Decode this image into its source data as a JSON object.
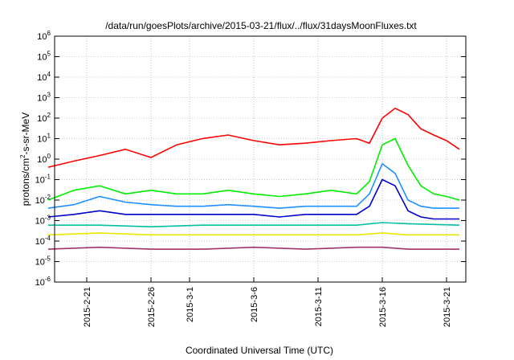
{
  "chart_data": {
    "type": "line",
    "title": "/data/run/goesPlots/archive/2015-03-21/flux/../flux/31daysMoonFluxes.txt",
    "xlabel": "Coordinated Universal Time (UTC)",
    "ylabel": {
      "prefix": "protons/cm",
      "sup": "2",
      "suffix": "-s-sr-MeV"
    },
    "y_scale": "log",
    "ylim": [
      1e-06,
      1000000.0
    ],
    "xlim": [
      "2015-02-18T12:00",
      "2015-03-22T12:00"
    ],
    "grid": true,
    "legend": "none",
    "x_ticks": [
      "2015-2-21",
      "2015-2-26",
      "2015-3-1",
      "2015-3-6",
      "2015-3-11",
      "2015-3-16",
      "2015-3-21"
    ],
    "y_ticks": [
      {
        "base": "10",
        "exp": "-6"
      },
      {
        "base": "10",
        "exp": "-5"
      },
      {
        "base": "10",
        "exp": "-4"
      },
      {
        "base": "10",
        "exp": "-3"
      },
      {
        "base": "10",
        "exp": "-2"
      },
      {
        "base": "10",
        "exp": "-1"
      },
      {
        "base": "10",
        "exp": "0"
      },
      {
        "base": "10",
        "exp": "1"
      },
      {
        "base": "10",
        "exp": "2"
      },
      {
        "base": "10",
        "exp": "3"
      },
      {
        "base": "10",
        "exp": "4"
      },
      {
        "base": "10",
        "exp": "5"
      },
      {
        "base": "10",
        "exp": "6"
      }
    ],
    "series": [
      {
        "color": "#ff0000",
        "x": [
          "2015-02-18",
          "2015-02-20",
          "2015-02-22",
          "2015-02-24",
          "2015-02-26",
          "2015-02-28",
          "2015-03-02",
          "2015-03-04",
          "2015-03-06",
          "2015-03-08",
          "2015-03-10",
          "2015-03-12",
          "2015-03-14",
          "2015-03-15",
          "2015-03-16",
          "2015-03-17",
          "2015-03-18",
          "2015-03-19",
          "2015-03-20",
          "2015-03-21",
          "2015-03-22"
        ],
        "y": [
          0.4,
          0.8,
          1.5,
          3,
          1.2,
          5,
          10,
          15,
          8,
          5,
          6,
          8,
          10,
          6,
          100,
          300,
          150,
          30,
          15,
          8,
          3
        ]
      },
      {
        "color": "#00ee00",
        "x": [
          "2015-02-18",
          "2015-02-20",
          "2015-02-22",
          "2015-02-24",
          "2015-02-26",
          "2015-02-28",
          "2015-03-02",
          "2015-03-04",
          "2015-03-06",
          "2015-03-08",
          "2015-03-10",
          "2015-03-12",
          "2015-03-14",
          "2015-03-15",
          "2015-03-16",
          "2015-03-17",
          "2015-03-18",
          "2015-03-19",
          "2015-03-20",
          "2015-03-21",
          "2015-03-22"
        ],
        "y": [
          0.01,
          0.03,
          0.05,
          0.02,
          0.03,
          0.02,
          0.02,
          0.03,
          0.02,
          0.015,
          0.02,
          0.03,
          0.02,
          0.08,
          5,
          10,
          0.5,
          0.05,
          0.02,
          0.015,
          0.01
        ]
      },
      {
        "color": "#1e90ff",
        "x": [
          "2015-02-18",
          "2015-02-20",
          "2015-02-22",
          "2015-02-24",
          "2015-02-26",
          "2015-02-28",
          "2015-03-02",
          "2015-03-04",
          "2015-03-06",
          "2015-03-08",
          "2015-03-10",
          "2015-03-12",
          "2015-03-14",
          "2015-03-15",
          "2015-03-16",
          "2015-03-17",
          "2015-03-18",
          "2015-03-19",
          "2015-03-20",
          "2015-03-21",
          "2015-03-22"
        ],
        "y": [
          0.004,
          0.006,
          0.015,
          0.008,
          0.006,
          0.005,
          0.005,
          0.006,
          0.005,
          0.004,
          0.005,
          0.005,
          0.005,
          0.02,
          0.6,
          0.2,
          0.01,
          0.005,
          0.004,
          0.004,
          0.004
        ]
      },
      {
        "color": "#0000cc",
        "x": [
          "2015-02-18",
          "2015-02-20",
          "2015-02-22",
          "2015-02-24",
          "2015-02-26",
          "2015-02-28",
          "2015-03-02",
          "2015-03-04",
          "2015-03-06",
          "2015-03-08",
          "2015-03-10",
          "2015-03-12",
          "2015-03-14",
          "2015-03-15",
          "2015-03-16",
          "2015-03-17",
          "2015-03-18",
          "2015-03-19",
          "2015-03-20",
          "2015-03-21",
          "2015-03-22"
        ],
        "y": [
          0.0015,
          0.002,
          0.003,
          0.002,
          0.002,
          0.002,
          0.002,
          0.002,
          0.002,
          0.0015,
          0.002,
          0.002,
          0.002,
          0.005,
          0.1,
          0.05,
          0.003,
          0.0015,
          0.0012,
          0.0012,
          0.0012
        ]
      },
      {
        "color": "#00c0a0",
        "x": [
          "2015-02-18",
          "2015-02-22",
          "2015-02-26",
          "2015-03-02",
          "2015-03-06",
          "2015-03-10",
          "2015-03-14",
          "2015-03-16",
          "2015-03-18",
          "2015-03-22"
        ],
        "y": [
          0.0006,
          0.0006,
          0.0005,
          0.0006,
          0.0006,
          0.0006,
          0.0006,
          0.0008,
          0.0007,
          0.0006
        ]
      },
      {
        "color": "#e8e800",
        "x": [
          "2015-02-18",
          "2015-02-22",
          "2015-02-26",
          "2015-03-02",
          "2015-03-06",
          "2015-03-10",
          "2015-03-14",
          "2015-03-16",
          "2015-03-18",
          "2015-03-22"
        ],
        "y": [
          0.0002,
          0.00025,
          0.0002,
          0.0002,
          0.0002,
          0.0002,
          0.0002,
          0.00025,
          0.0002,
          0.0002
        ]
      },
      {
        "color": "#a0306a",
        "x": [
          "2015-02-18",
          "2015-02-22",
          "2015-02-26",
          "2015-03-02",
          "2015-03-06",
          "2015-03-10",
          "2015-03-14",
          "2015-03-16",
          "2015-03-18",
          "2015-03-22"
        ],
        "y": [
          4e-05,
          5e-05,
          4e-05,
          4e-05,
          5e-05,
          4e-05,
          5e-05,
          5e-05,
          4e-05,
          4e-05
        ]
      }
    ]
  }
}
